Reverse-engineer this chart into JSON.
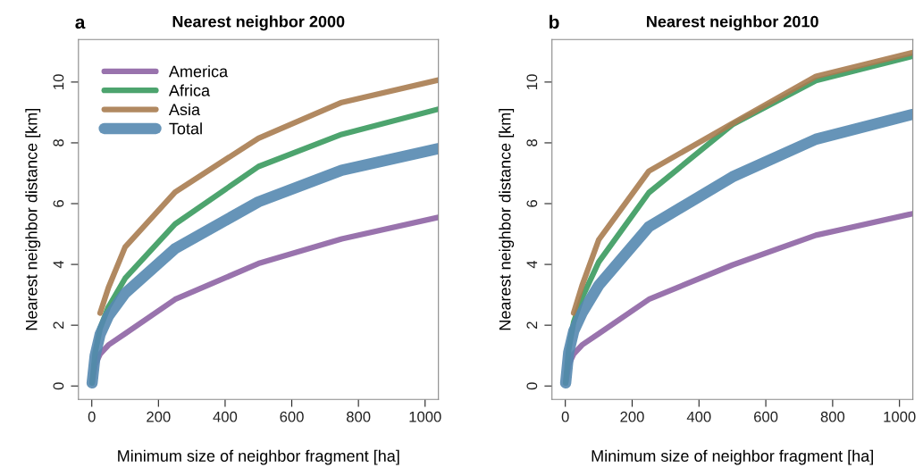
{
  "chart_data": [
    {
      "type": "line",
      "title": "Nearest neighbor 2000",
      "annotations": [
        "a"
      ],
      "xlabel": "Minimum size of neighbor fragment [ha]",
      "ylabel": "Nearest neighbor distance [km]",
      "x": [
        1,
        10,
        25,
        50,
        100,
        250,
        500,
        750,
        1040
      ],
      "series": [
        {
          "name": "America",
          "color": "#8e64a4",
          "values": [
            0.1,
            0.7,
            1.05,
            1.35,
            1.72,
            2.85,
            4.03,
            4.84,
            5.55
          ]
        },
        {
          "name": "Africa",
          "color": "#3a9a5e",
          "values": [
            0.1,
            1.1,
            1.9,
            2.6,
            3.54,
            5.33,
            7.22,
            8.28,
            9.11
          ]
        },
        {
          "name": "Asia",
          "color": "#a97c50",
          "values": [
            null,
            null,
            2.4,
            3.24,
            4.57,
            6.38,
            8.15,
            9.33,
            10.07
          ]
        },
        {
          "name": "Total",
          "color": "#5588b0",
          "values": [
            0.1,
            1.0,
            1.7,
            2.3,
            3.05,
            4.52,
            6.06,
            7.1,
            7.81
          ]
        }
      ],
      "xlim": [
        -40,
        1040
      ],
      "ylim": [
        -0.44,
        11.4
      ],
      "xticks": [
        0,
        200,
        400,
        600,
        800,
        1000
      ],
      "yticks": [
        0,
        2,
        4,
        6,
        8,
        10
      ],
      "grid": false,
      "legend": "top left",
      "marker": "none",
      "line_style": "solid"
    },
    {
      "type": "line",
      "title": "Nearest neighbor 2010",
      "annotations": [
        "b"
      ],
      "xlabel": "Minimum size of neighbor fragment [ha]",
      "ylabel": "Nearest neighbor distance [km]",
      "x": [
        1,
        10,
        25,
        50,
        100,
        250,
        500,
        750,
        1040
      ],
      "series": [
        {
          "color": "#8e64a4",
          "values": [
            0.1,
            0.7,
            1.05,
            1.35,
            1.72,
            2.85,
            3.98,
            4.96,
            5.67
          ]
        },
        {
          "color": "#3a9a5e",
          "values": [
            0.1,
            1.2,
            2.1,
            2.9,
            4.08,
            6.36,
            8.6,
            10.05,
            10.85
          ]
        },
        {
          "color": "#a97c50",
          "values": [
            null,
            null,
            2.4,
            3.3,
            4.81,
            7.07,
            8.64,
            10.19,
            10.97
          ]
        },
        {
          "color": "#5588b0",
          "values": [
            0.1,
            1.1,
            1.8,
            2.4,
            3.31,
            5.24,
            6.88,
            8.12,
            8.94
          ]
        }
      ],
      "xlim": [
        -40,
        1040
      ],
      "ylim": [
        -0.44,
        11.4
      ],
      "xticks": [
        0,
        200,
        400,
        600,
        800,
        1000
      ],
      "yticks": [
        0,
        2,
        4,
        6,
        8,
        10
      ],
      "grid": false,
      "legend": false,
      "marker": "none",
      "line_style": "solid"
    }
  ]
}
